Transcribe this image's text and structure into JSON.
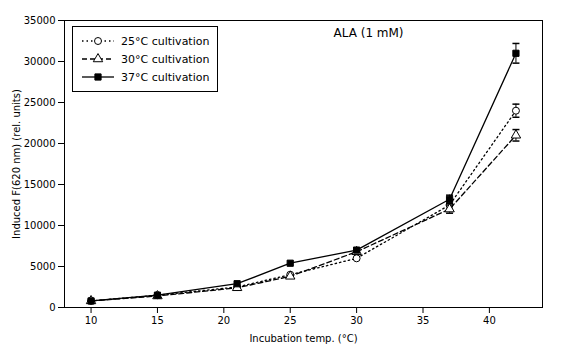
{
  "chart_data": {
    "type": "line",
    "title": "ALA (1 mM)",
    "xlabel": "Incubation temp. (°C)",
    "ylabel": "Induced F(620 nm) (rel. units)",
    "x": [
      10,
      15,
      21,
      25,
      30,
      37,
      42
    ],
    "series": [
      {
        "name": "25°C cultivation",
        "color": "black",
        "marker": "circle-open",
        "line_style": "dotted",
        "values": [
          800,
          1500,
          2500,
          4000,
          6000,
          12500,
          24000
        ],
        "yerr": [
          null,
          null,
          null,
          null,
          null,
          500,
          800
        ]
      },
      {
        "name": "30°C cultivation",
        "color": "black",
        "marker": "triangle-open",
        "line_style": "dashed",
        "values": [
          800,
          1400,
          2400,
          3800,
          6800,
          12000,
          21000
        ],
        "yerr": [
          null,
          null,
          null,
          null,
          null,
          500,
          700
        ]
      },
      {
        "name": "37°C cultivation",
        "color": "black",
        "marker": "square",
        "line_style": "solid",
        "values": [
          800,
          1500,
          2900,
          5400,
          7000,
          13200,
          31000
        ],
        "yerr": [
          null,
          null,
          null,
          null,
          null,
          500,
          1200
        ]
      }
    ],
    "xlim": [
      8,
      44
    ],
    "xticks": [
      10,
      15,
      20,
      25,
      30,
      35,
      40
    ],
    "ylim": [
      0,
      35000
    ],
    "yticks": [
      0,
      5000,
      10000,
      15000,
      20000,
      25000,
      30000,
      35000
    ],
    "grid": false,
    "legend": "upper left"
  }
}
